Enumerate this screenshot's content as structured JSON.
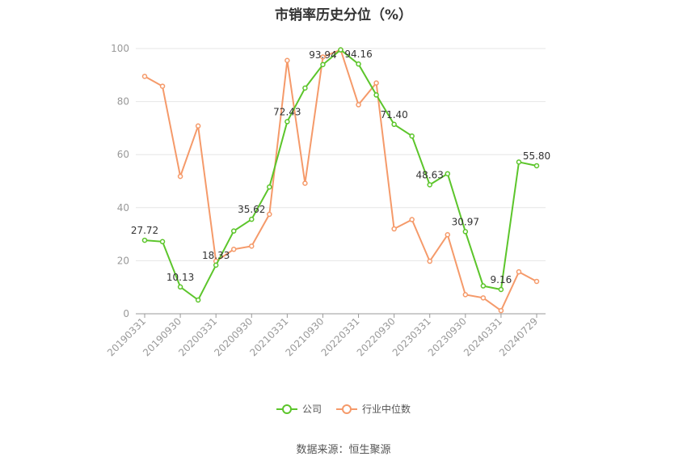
{
  "chart_data": {
    "type": "line",
    "title": "市销率历史分位（%）",
    "xlabel": "",
    "ylabel": "",
    "ylim": [
      0,
      100
    ],
    "yticks": [
      0,
      20,
      40,
      60,
      80,
      100
    ],
    "x": [
      "20190331",
      "20190630",
      "20190930",
      "20191231",
      "20200331",
      "20200630",
      "20200930",
      "20201231",
      "20210331",
      "20210630",
      "20210930",
      "20211231",
      "20220331",
      "20220630",
      "20220930",
      "20221231",
      "20230331",
      "20230630",
      "20230930",
      "20231231",
      "20240331",
      "20240630",
      "20240729"
    ],
    "xtick_labels": [
      "20190331",
      "20190930",
      "20200331",
      "20200930",
      "20210331",
      "20210930",
      "20220331",
      "20220930",
      "20230331",
      "20230930",
      "20240331",
      "20240729"
    ],
    "grid": true,
    "legend_position": "bottom",
    "series": [
      {
        "name": "公司",
        "color": "#5cc52b",
        "values": [
          27.72,
          27.2,
          10.13,
          5.2,
          18.33,
          31.2,
          35.62,
          47.8,
          72.43,
          85.1,
          93.94,
          99.5,
          94.16,
          82.5,
          71.4,
          67.0,
          48.63,
          52.8,
          30.97,
          10.5,
          9.16,
          57.2,
          55.8
        ],
        "labels": {
          "0": "27.72",
          "2": "10.13",
          "4": "18.33",
          "6": "35.62",
          "8": "72.43",
          "10": "93.94",
          "12": "94.16",
          "14": "71.40",
          "16": "48.63",
          "18": "30.97",
          "20": "9.16",
          "22": "55.80"
        }
      },
      {
        "name": "行业中位数",
        "color": "#f59a6a",
        "values": [
          89.5,
          85.8,
          51.8,
          70.8,
          19.8,
          24.3,
          25.5,
          37.5,
          95.5,
          49.2,
          96.8,
          99.5,
          78.8,
          87.0,
          32.0,
          35.5,
          19.8,
          29.8,
          7.2,
          6.0,
          1.2,
          15.8,
          12.2
        ]
      }
    ]
  },
  "source_note": "数据来源：恒生聚源"
}
